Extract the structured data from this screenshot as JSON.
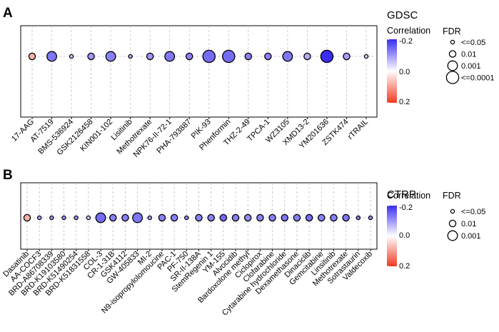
{
  "colors": {
    "negative": "#3a2df0",
    "zero": "#ffffff",
    "positive": "#f03a22"
  },
  "chart_data": [
    {
      "type": "scatter",
      "subtype": "bubble-dot-plot",
      "panel_label": "A",
      "title": "GDSC",
      "color_legend_title": "Correlation",
      "color_scale": {
        "ticks": [
          "-0.2",
          "0.0",
          "0.2"
        ],
        "min": -0.2,
        "max": 0.2
      },
      "size_legend_title": "FDR",
      "size_legend": [
        "<=0.05",
        "0.01",
        "0.001",
        "<=0.0001"
      ],
      "categories": [
        "17-AAG",
        "AT-7519",
        "BMS-536924",
        "GSK2126458",
        "KIN001-102",
        "Lisitinib",
        "Methotrexate",
        "NPK76-II-72-1",
        "PHA-793887",
        "PIK-93",
        "Phenformin",
        "THZ-2-49",
        "TPCA-1",
        "WZ3105",
        "XMD13-2",
        "YM201636",
        "ZSTK474",
        "rTRAIL"
      ],
      "correlation": [
        0.08,
        -0.13,
        -0.06,
        -0.1,
        -0.12,
        -0.08,
        -0.1,
        -0.13,
        -0.12,
        -0.14,
        -0.14,
        -0.12,
        -0.12,
        -0.13,
        -0.08,
        -0.2,
        -0.09,
        -0.05
      ],
      "fdr_level": [
        1,
        2,
        0,
        1,
        2,
        0,
        1,
        2,
        1,
        3,
        3,
        1,
        1,
        2,
        1,
        3,
        1,
        0
      ]
    },
    {
      "type": "scatter",
      "subtype": "bubble-dot-plot",
      "panel_label": "B",
      "title": "CTRP",
      "color_legend_title": "Correlation",
      "color_scale": {
        "ticks": [
          "-0.2",
          "0.0",
          "0.2"
        ],
        "min": -0.2,
        "max": 0.2
      },
      "size_legend_title": "FDR",
      "size_legend": [
        "<=0.05",
        "0.01",
        "0.001"
      ],
      "categories": [
        "Dasatinib",
        "AA-COCF3",
        "BRD-A86708339",
        "BRD-K19103580",
        "BRD-K51490254",
        "BRD-K51831558",
        "COL-3",
        "CR-1-31B",
        "GSK4112",
        "GW-405833",
        "MI-2",
        "N9-isopropylolomoucine",
        "PAC-1",
        "PF-750",
        "SR-II-138A",
        "StemRegenin 1",
        "YM-155",
        "Alvocidib",
        "Bardoxolone methyl",
        "Ciclopirox",
        "Clofarabine",
        "Cytarabine hydrochloride",
        "Dexamethasone",
        "Dinaciclib",
        "Gemcitabine",
        "Linsitinib",
        "Methotrexate",
        "Sotrastaurin",
        "Valdecoxib"
      ],
      "correlation": [
        0.08,
        -0.09,
        -0.1,
        -0.1,
        -0.1,
        -0.05,
        -0.14,
        -0.12,
        -0.12,
        -0.13,
        -0.09,
        -0.12,
        -0.12,
        -0.11,
        -0.12,
        -0.12,
        -0.14,
        -0.12,
        -0.11,
        -0.12,
        -0.12,
        -0.13,
        -0.12,
        -0.14,
        -0.12,
        -0.12,
        -0.13,
        -0.12,
        -0.11
      ],
      "fdr_level": [
        1,
        0,
        0,
        0,
        0,
        0,
        2,
        1,
        1,
        2,
        0,
        1,
        1,
        0,
        1,
        1,
        1,
        1,
        1,
        1,
        1,
        1,
        1,
        1,
        1,
        1,
        1,
        0,
        0
      ]
    }
  ]
}
